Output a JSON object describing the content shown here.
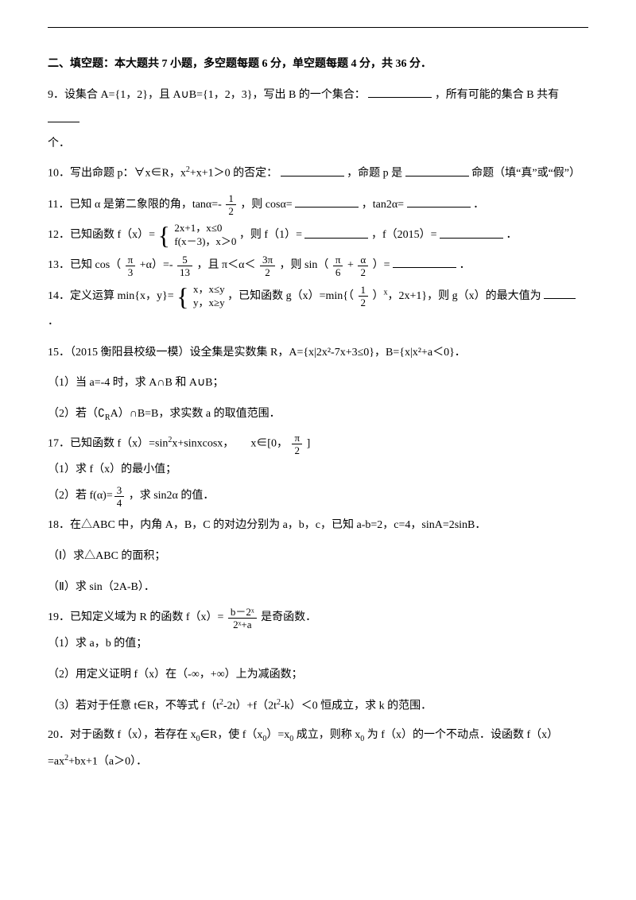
{
  "page": {
    "text_color": "#000000",
    "background": "#ffffff",
    "font_size_pt": 10.5
  },
  "section_title": "二、填空题：本大题共 7 小题，多空题每题 6 分，单空题每题 4 分，共 36 分．",
  "q9": {
    "pre": "9．设集合 A={1，2}，且 A∪B={1，2，3}，写出 B 的一个集合：",
    "mid": "，所有可能的集合 B 共有",
    "post": "个．"
  },
  "q10": {
    "pre": "10．写出命题 p：∀x∈R，x",
    "sup1": "2",
    "mid1": "+x+1＞0 的否定：",
    "mid2": "，命题 p 是",
    "post": "命题（填“真”或“假”）"
  },
  "q11": {
    "pre": "11．已知 α 是第二象限的角，tanα=-",
    "frac1_num": "1",
    "frac1_den": "2",
    "mid1": "，则 cosα=",
    "mid2": "，tan2α=",
    "post": "．"
  },
  "q12": {
    "pre": "12．已知函数 f（x）=",
    "case1": "2x+1，x≤0",
    "case2": "f(x－3)，x＞0",
    "mid1": "，则 f（1）=",
    "mid2": "，f（2015）=",
    "post": "．"
  },
  "q13": {
    "pre": "13．已知 cos（",
    "frac1_num": "π",
    "frac1_den": "3",
    "mid1": "+α）=-",
    "frac2_num": "5",
    "frac2_den": "13",
    "mid2": "，且 π＜α＜",
    "frac3_num": "3π",
    "frac3_den": "2",
    "mid3": "，则 sin（",
    "frac4_num": "π",
    "frac4_den": "6",
    "plus": "+",
    "frac5_num": "α",
    "frac5_den": "2",
    "mid4": "）=",
    "post": "．"
  },
  "q14": {
    "pre": "14．定义运算 min{x，y}=",
    "case1": "x，x≤y",
    "case2": "y，x≥y",
    "mid1": "，已知函数 g（x）=min{（",
    "frac_num": "1",
    "frac_den": "2",
    "mid2": "）",
    "sup": "x",
    "mid3": "，2x+1}，则 g（x）的最大值为",
    "post": "．"
  },
  "q15": {
    "line1": "15．（2015 衡阳县校级一模）设全集是实数集 R，A={x|2x²-7x+3≤0}，B={x|x²+a＜0}．",
    "line2": "（1）当 a=-4 时，求 A∩B 和 A∪B；",
    "line3_pre": "（2）若（∁",
    "line3_sub": "R",
    "line3_post": "A）∩B=B，求实数 a 的取值范围．"
  },
  "q17": {
    "line1_pre": "17．已知函数 f（x）=sin",
    "sup1": "2",
    "line1_mid": "x+sinxcosx，",
    "domain_pre": "x∈[0，",
    "frac_num": "π",
    "frac_den": "2",
    "domain_post": "]",
    "line2": "（1）求 f（x）的最小值；",
    "line3_pre": "（2）若",
    "line3_expr_pre": "f(α)=",
    "efrac_num": "3",
    "efrac_den": "4",
    "line3_post": "，求 sin2α 的值．"
  },
  "q18": {
    "line1": "18．在△ABC 中，内角 A，B，C 的对边分别为 a，b，c，已知 a-b=2，c=4，sinA=2sinB．",
    "line2": "（Ⅰ）求△ABC 的面积；",
    "line3": "（Ⅱ）求 sin（2A-B）．"
  },
  "q19": {
    "line1_pre": "19．已知定义域为 R 的函数 f（x）=",
    "frac_num": "b－2ˣ",
    "frac_den": "2ˣ+a",
    "line1_post": " 是奇函数．",
    "line2": "（1）求 a，b 的值；",
    "line3": "（2）用定义证明 f（x）在（-∞，+∞）上为减函数；",
    "line4_pre": "（3）若对于任意 t∈R，不等式 f（t",
    "sup1": "2",
    "mid1": "-2t）+f（2t",
    "sup2": "2",
    "line4_post": "-k）＜0 恒成立，求 k 的范围．"
  },
  "q20": {
    "line1_pre": "20．对于函数 f（x），若存在 x",
    "sub0a": "0",
    "mid1": "∈R，使 f（x",
    "sub0b": "0",
    "mid2": "）=x",
    "sub0c": "0",
    "mid3": " 成立，则称 x",
    "sub0d": "0",
    "line1_post": " 为 f（x）的一个不动点．设函数 f（x）",
    "line2_pre": "=ax",
    "sup1": "2",
    "line2_post": "+bx+1（a＞0）．"
  }
}
